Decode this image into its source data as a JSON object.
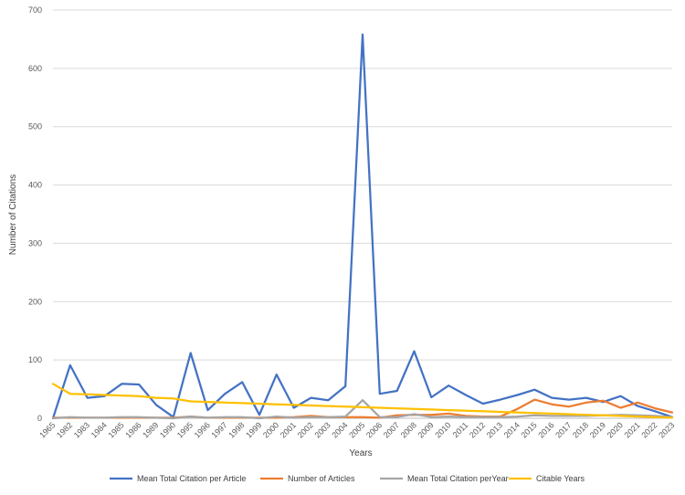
{
  "chart_data": {
    "type": "line",
    "title": "",
    "xlabel": "Years",
    "ylabel": "Number of Citations",
    "ylim": [
      0,
      700
    ],
    "yticks": [
      0,
      100,
      200,
      300,
      400,
      500,
      600,
      700
    ],
    "grid": true,
    "legend_position": "bottom",
    "categories": [
      "1965",
      "1982",
      "1983",
      "1984",
      "1985",
      "1986",
      "1989",
      "1990",
      "1995",
      "1996",
      "1997",
      "1998",
      "1999",
      "2000",
      "2001",
      "2002",
      "2003",
      "2004",
      "2005",
      "2006",
      "2007",
      "2008",
      "2009",
      "2010",
      "2011",
      "2012",
      "2013",
      "2014",
      "2015",
      "2016",
      "2017",
      "2018",
      "2019",
      "2020",
      "2021",
      "2022",
      "2023"
    ],
    "series": [
      {
        "name": "Mean Total Citation per Article",
        "color": "#4472C4",
        "values": [
          0,
          91,
          35,
          38,
          59,
          58,
          23,
          2,
          112,
          14,
          42,
          62,
          6,
          75,
          18,
          35,
          31,
          55,
          658,
          42,
          47,
          115,
          36,
          56,
          40,
          25,
          32,
          40,
          49,
          35,
          32,
          35,
          28,
          38,
          21,
          12,
          2
        ]
      },
      {
        "name": "Number of Articles",
        "color": "#ED7D31",
        "values": [
          1,
          1,
          1,
          1,
          1,
          1,
          1,
          1,
          3,
          1,
          1,
          1,
          1,
          1,
          2,
          4,
          2,
          2,
          2,
          1,
          5,
          6,
          6,
          8,
          4,
          3,
          3,
          16,
          32,
          24,
          20,
          27,
          30,
          18,
          27,
          17,
          10
        ]
      },
      {
        "name": "Mean Total Citation perYear",
        "color": "#A5A5A5",
        "values": [
          0,
          2,
          1,
          1,
          2,
          2,
          1,
          0,
          3,
          1,
          2,
          2,
          0,
          3,
          1,
          2,
          2,
          3,
          31,
          2,
          2,
          7,
          2,
          3,
          2,
          2,
          2,
          3,
          5,
          4,
          4,
          4,
          5,
          6,
          5,
          4,
          2
        ]
      },
      {
        "name": "Citable Years",
        "color": "#FFC000",
        "values": [
          59,
          42,
          41,
          40,
          39,
          38,
          35,
          34,
          29,
          28,
          27,
          26,
          25,
          24,
          23,
          22,
          21,
          20,
          19,
          18,
          17,
          16,
          15,
          14,
          13,
          12,
          11,
          10,
          9,
          8,
          7,
          6,
          5,
          4,
          3,
          2,
          1
        ]
      }
    ]
  }
}
